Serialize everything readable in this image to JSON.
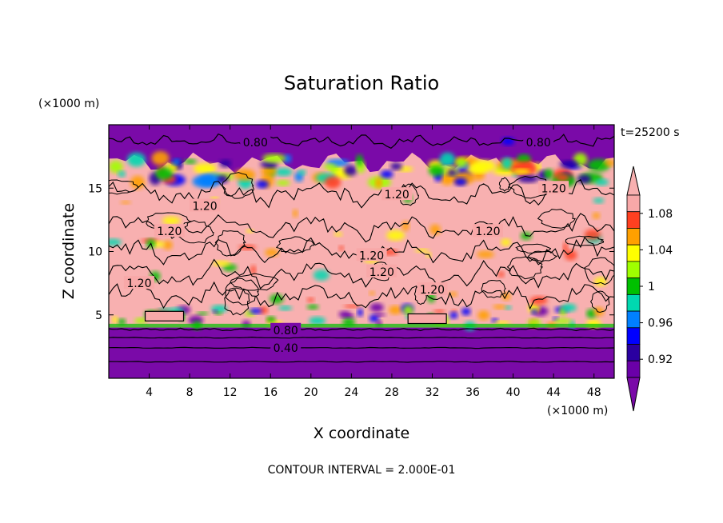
{
  "chart_data": {
    "type": "heatmap",
    "title": "Saturation Ratio",
    "xlabel": "X coordinate",
    "ylabel": "Z coordinate",
    "x_unit": "(×1000 m)",
    "y_unit": "(×1000 m)",
    "time_label": "t=25200 s",
    "footer": "CONTOUR INTERVAL = 2.000E-01",
    "xlim": [
      0,
      50
    ],
    "ylim": [
      0,
      20
    ],
    "x_ticks": [
      "4",
      "8",
      "12",
      "16",
      "20",
      "24",
      "28",
      "32",
      "36",
      "40",
      "44",
      "48"
    ],
    "x_tick_values": [
      4,
      8,
      12,
      16,
      20,
      24,
      28,
      32,
      36,
      40,
      44,
      48
    ],
    "y_ticks": [
      "5",
      "10",
      "15"
    ],
    "y_tick_values": [
      5,
      10,
      15
    ],
    "colorbar": {
      "labels": [
        "1.08",
        "1.04",
        "1",
        "0.96",
        "0.92"
      ],
      "label_values": [
        1.08,
        1.04,
        1.0,
        0.96,
        0.92
      ],
      "levels": [
        0.9,
        0.92,
        0.94,
        0.96,
        0.98,
        1.0,
        1.02,
        1.04,
        1.06,
        1.08,
        1.1
      ],
      "colors": [
        "#6a00a8",
        "#2a00a0",
        "#0000ff",
        "#0080ff",
        "#00d8b0",
        "#00c000",
        "#a0ff00",
        "#ffff00",
        "#ffa000",
        "#ff4020",
        "#f8a8a8"
      ],
      "under_color": "#7a0aa8",
      "over_color": "#f8b0b0"
    },
    "contour_labels": [
      {
        "text": "0.80",
        "x": 14.5,
        "z": 18.6
      },
      {
        "text": "0.80",
        "x": 42.5,
        "z": 18.6
      },
      {
        "text": "1.20",
        "x": 9.5,
        "z": 13.6
      },
      {
        "text": "1.20",
        "x": 28.5,
        "z": 14.5
      },
      {
        "text": "1.20",
        "x": 44.0,
        "z": 15.0
      },
      {
        "text": "1.20",
        "x": 6.0,
        "z": 11.6
      },
      {
        "text": "1.20",
        "x": 37.5,
        "z": 11.6
      },
      {
        "text": "1.20",
        "x": 26.0,
        "z": 9.7
      },
      {
        "text": "1.20",
        "x": 27.0,
        "z": 8.4
      },
      {
        "text": "1.20",
        "x": 3.0,
        "z": 7.5
      },
      {
        "text": "1.20",
        "x": 32.0,
        "z": 7.0
      },
      {
        "text": "0.80",
        "x": 17.5,
        "z": 3.8
      },
      {
        "text": "0.40",
        "x": 17.5,
        "z": 2.4
      }
    ]
  }
}
